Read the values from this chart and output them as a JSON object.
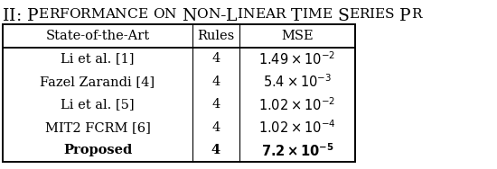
{
  "col_headers": [
    "State-of-the-Art",
    "Rules",
    "MSE"
  ],
  "rows": [
    [
      "Li et al. [1]",
      "4"
    ],
    [
      "Fazel Zarandi [4]",
      "4"
    ],
    [
      "Li et al. [5]",
      "4"
    ],
    [
      "MIT2 FCRM [6]",
      "4"
    ],
    [
      "Proposed",
      "4"
    ]
  ],
  "mse_values": [
    [
      "1.49",
      "-2",
      false
    ],
    [
      "5.4",
      "-3",
      false
    ],
    [
      "1.02",
      "-2",
      false
    ],
    [
      "1.02",
      "-4",
      false
    ],
    [
      "7.2",
      "-5",
      true
    ]
  ],
  "bg_color": "#ffffff",
  "lw_outer": 1.4,
  "lw_inner": 0.8,
  "cell_fontsize": 10.5,
  "header_fontsize": 10.5,
  "title_fontsize": 13.5
}
